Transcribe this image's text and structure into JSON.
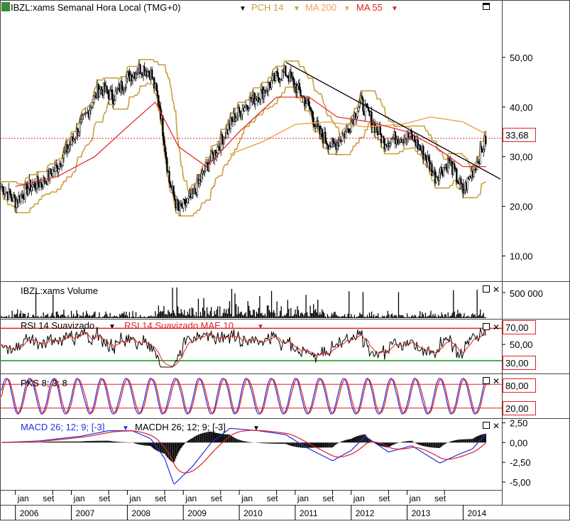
{
  "header": {
    "symbol_label": "IBZL:xams Semanal Hora Local (TMG+0)",
    "indicators": [
      {
        "label": "PCH 14",
        "color": "#c8a040"
      },
      {
        "label": "MA 200",
        "color": "#f0a050"
      },
      {
        "label": "MA 55",
        "color": "#e02020"
      }
    ]
  },
  "panels": {
    "price": {
      "last_value": "33,68"
    },
    "volume": {
      "title": "IBZL:xams Volume",
      "tick": "500 000"
    },
    "rsi": {
      "title": "RSI 14 Suavizado",
      "title2": "RSI 14 Suavizado MAE 10",
      "levels": [
        "70,00",
        "30,00"
      ],
      "mid_tick": "50,00"
    },
    "pks": {
      "title": "PKS 8; 3; 8",
      "levels": [
        "80,00",
        "20,00"
      ]
    },
    "macd": {
      "title": "MACD 26; 12; 9; [-3]",
      "title2": "MACDH 26; 12; 9; [-3]"
    }
  },
  "chart_data": {
    "type": "line",
    "price_ticks": [
      "50,00",
      "40,00",
      "30,00",
      "20,00",
      "10,00"
    ],
    "price_ylim": [
      5.5,
      58.7
    ],
    "macd_ticks": [
      "2,50",
      "0,00",
      "-2,50",
      "-5,00"
    ],
    "macd_ylim": [
      -5.9,
      2.9
    ],
    "month_labels": [
      "set",
      "jan",
      "set",
      "jan",
      "set",
      "jan",
      "set",
      "jan",
      "set",
      "jan",
      "set",
      "jan",
      "set",
      "jan",
      "set",
      "jan",
      "set"
    ],
    "year_labels": [
      "2006",
      "2007",
      "2008",
      "2009",
      "2010",
      "2011",
      "2012",
      "2013",
      "2014"
    ],
    "time_range": [
      "2005-10",
      "2014-09"
    ],
    "price_points": [
      [
        "2005-10",
        24
      ],
      [
        "2006-01",
        21
      ],
      [
        "2006-04",
        24
      ],
      [
        "2006-07",
        25
      ],
      [
        "2006-10",
        28
      ],
      [
        "2007-01",
        33
      ],
      [
        "2007-04",
        38
      ],
      [
        "2007-07",
        44
      ],
      [
        "2007-10",
        42
      ],
      [
        "2008-01",
        46
      ],
      [
        "2008-04",
        48
      ],
      [
        "2008-06",
        47
      ],
      [
        "2008-08",
        40
      ],
      [
        "2008-10",
        25
      ],
      [
        "2008-12",
        19
      ],
      [
        "2009-03",
        22
      ],
      [
        "2009-06",
        28
      ],
      [
        "2009-09",
        33
      ],
      [
        "2009-12",
        38
      ],
      [
        "2010-03",
        41
      ],
      [
        "2010-06",
        43
      ],
      [
        "2010-09",
        46
      ],
      [
        "2010-11",
        47
      ],
      [
        "2011-02",
        43
      ],
      [
        "2011-04",
        40
      ],
      [
        "2011-06",
        35
      ],
      [
        "2011-09",
        32
      ],
      [
        "2011-12",
        35
      ],
      [
        "2012-03",
        41
      ],
      [
        "2012-05",
        38
      ],
      [
        "2012-08",
        33
      ],
      [
        "2012-11",
        34
      ],
      [
        "2013-02",
        34
      ],
      [
        "2013-05",
        30
      ],
      [
        "2013-07",
        26
      ],
      [
        "2013-10",
        29
      ],
      [
        "2014-01",
        23
      ],
      [
        "2014-04",
        29
      ],
      [
        "2014-06",
        33.7
      ]
    ],
    "ma200_points": [
      [
        "2009-11",
        30.5
      ],
      [
        "2010-06",
        33
      ],
      [
        "2011-01",
        36.5
      ],
      [
        "2011-08",
        37
      ],
      [
        "2012-04",
        36
      ],
      [
        "2012-12",
        36.5
      ],
      [
        "2013-06",
        38
      ],
      [
        "2014-01",
        37
      ],
      [
        "2014-06",
        34.5
      ]
    ],
    "ma55_points": [
      [
        "2006-01",
        24
      ],
      [
        "2006-10",
        26
      ],
      [
        "2007-06",
        30
      ],
      [
        "2008-01",
        36
      ],
      [
        "2008-07",
        41
      ],
      [
        "2008-12",
        32
      ],
      [
        "2009-06",
        28
      ],
      [
        "2010-01",
        35
      ],
      [
        "2010-09",
        42
      ],
      [
        "2011-04",
        42
      ],
      [
        "2011-10",
        38
      ],
      [
        "2012-05",
        37
      ],
      [
        "2013-01",
        35
      ],
      [
        "2013-07",
        32
      ],
      [
        "2014-01",
        28
      ],
      [
        "2014-06",
        28
      ]
    ],
    "trendline": [
      [
        "2010-11",
        49
      ],
      [
        "2014-09",
        25.5
      ]
    ],
    "macd_points": [
      [
        "2005-10",
        0
      ],
      [
        "2006-06",
        0.2
      ],
      [
        "2007-03",
        0.8
      ],
      [
        "2007-09",
        1.5
      ],
      [
        "2008-02",
        1.5
      ],
      [
        "2008-06",
        0.5
      ],
      [
        "2008-09",
        -2
      ],
      [
        "2008-11",
        -5.3
      ],
      [
        "2009-03",
        -3
      ],
      [
        "2009-07",
        0
      ],
      [
        "2009-11",
        1.8
      ],
      [
        "2010-05",
        1.5
      ],
      [
        "2010-11",
        1
      ],
      [
        "2011-03",
        -0.5
      ],
      [
        "2011-09",
        -2.3
      ],
      [
        "2012-01",
        -1
      ],
      [
        "2012-04",
        0.8
      ],
      [
        "2012-09",
        -1.2
      ],
      [
        "2013-02",
        -0.4
      ],
      [
        "2013-08",
        -2.6
      ],
      [
        "2013-12",
        -1.5
      ],
      [
        "2014-03",
        -0.8
      ],
      [
        "2014-06",
        1.2
      ]
    ]
  }
}
